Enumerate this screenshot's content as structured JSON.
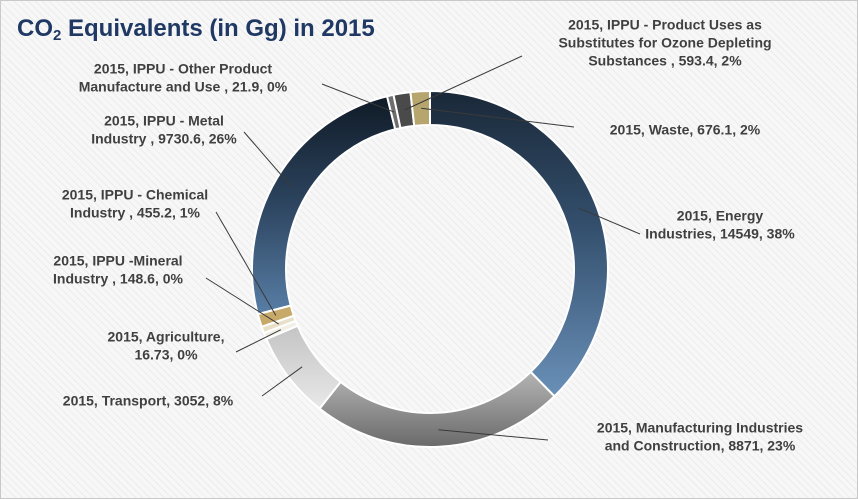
{
  "chart_data": {
    "type": "pie",
    "subtype": "donut",
    "title_prefix": "CO",
    "title_subscript": "2",
    "title_suffix": " Equivalents (in Gg) in 2015",
    "slices": [
      {
        "label": "2015, Energy Industries",
        "value": 14549,
        "percent": "38%",
        "color": "#5a80a8",
        "text_lines": [
          "2015, Energy",
          "Industries, 14549, 38%"
        ]
      },
      {
        "label": "2015, Manufacturing Industries and Construction",
        "value": 8871,
        "percent": "23%",
        "color": "#8c8c8c",
        "text_lines": [
          "2015, Manufacturing Industries",
          "and Construction, 8871, 23%"
        ]
      },
      {
        "label": "2015, Transport",
        "value": 3052,
        "percent": "8%",
        "color": "#c8c8c8",
        "text_lines": [
          "2015, Transport, 3052, 8%"
        ]
      },
      {
        "label": "2015, Agriculture",
        "value": 16.73,
        "percent": "0%",
        "color": "#f2efe6",
        "text_lines": [
          "2015, Agriculture,",
          "16.73, 0%"
        ]
      },
      {
        "label": "2015, IPPU -Mineral Industry",
        "value": 148.6,
        "percent": "0%",
        "color": "#e8e0c8",
        "text_lines": [
          "2015, IPPU -Mineral",
          "Industry , 148.6, 0%"
        ]
      },
      {
        "label": "2015, IPPU - Chemical Industry",
        "value": 455.2,
        "percent": "1%",
        "color": "#c7a96a",
        "text_lines": [
          "2015, IPPU - Chemical",
          "Industry , 455.2, 1%"
        ]
      },
      {
        "label": "2015, IPPU - Metal Industry",
        "value": 9730.6,
        "percent": "26%",
        "color": "#3f5a7a",
        "text_lines": [
          "2015, IPPU - Metal",
          "Industry , 9730.6, 26%"
        ]
      },
      {
        "label": "2015, IPPU - Other Product Manufacture and Use",
        "value": 21.9,
        "percent": "0%",
        "color": "#6e6e6e",
        "text_lines": [
          "2015, IPPU - Other Product",
          "Manufacture and Use , 21.9, 0%"
        ]
      },
      {
        "label": "2015, IPPU - Product Uses as Substitutes for Ozone Depleting Substances",
        "value": 593.4,
        "percent": "2%",
        "color": "#4a4a4a",
        "text_lines": [
          "2015, IPPU - Product Uses as",
          "Substitutes for Ozone Depleting",
          "Substances , 593.4, 2%"
        ]
      },
      {
        "label": "2015, Waste",
        "value": 676.1,
        "percent": "2%",
        "color": "#b7a56e",
        "text_lines": [
          "2015, Waste, 676.1, 2%"
        ]
      }
    ]
  }
}
